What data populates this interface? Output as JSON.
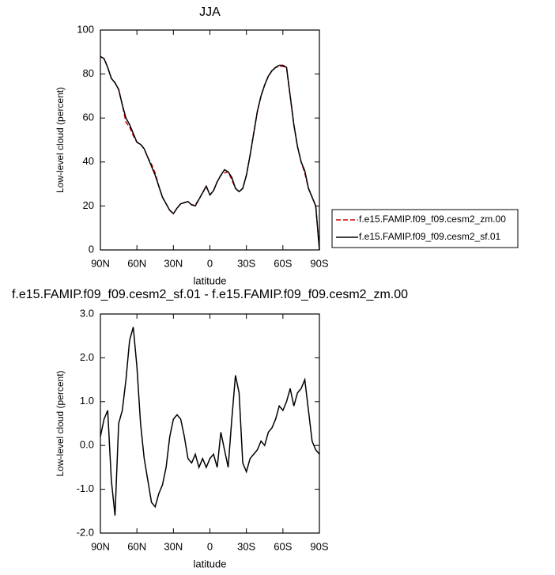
{
  "chart_data": [
    {
      "type": "line",
      "title": "JJA",
      "xlabel": "latitude",
      "ylabel": "Low-level cloud (percent)",
      "x": [
        90,
        87,
        84,
        81,
        78,
        75,
        72,
        69,
        66,
        63,
        60,
        57,
        54,
        51,
        48,
        45,
        42,
        39,
        36,
        33,
        30,
        27,
        24,
        21,
        18,
        15,
        12,
        9,
        6,
        3,
        0,
        -3,
        -6,
        -9,
        -12,
        -15,
        -18,
        -21,
        -24,
        -27,
        -30,
        -33,
        -36,
        -39,
        -42,
        -45,
        -48,
        -51,
        -54,
        -57,
        -60,
        -63,
        -66,
        -69,
        -72,
        -75,
        -78,
        -81,
        -84,
        -87,
        -90
      ],
      "series": [
        {
          "name": "f.e15.FAMIP.f09_f09.cesm2_zm.00",
          "color": "#cc0000",
          "line_style": "dashed",
          "values": [
            88,
            87,
            83,
            78,
            76,
            73,
            66,
            58,
            56,
            52,
            49,
            48,
            46,
            42,
            39,
            35,
            29,
            24,
            21,
            18,
            16.5,
            19,
            21,
            21.5,
            22,
            20.5,
            20.5,
            23,
            26,
            29,
            25,
            27,
            31,
            34,
            35,
            35.5,
            32,
            28,
            26.5,
            28,
            34,
            43,
            53,
            63,
            70,
            75,
            79,
            81.5,
            83,
            83.5,
            83.5,
            83,
            70,
            57,
            47,
            40,
            35,
            28,
            24,
            20,
            0
          ]
        },
        {
          "name": "f.e15.FAMIP.f09_f09.cesm2_sf.01",
          "color": "#000000",
          "line_style": "solid",
          "values": [
            88,
            87,
            83,
            78,
            76,
            73,
            66,
            60,
            57,
            53,
            49,
            48,
            46,
            42,
            38,
            34,
            29,
            24,
            21,
            18,
            16.5,
            19,
            21,
            21.5,
            22,
            20.5,
            20,
            23,
            26,
            29,
            25,
            27,
            31,
            34,
            36.5,
            35.5,
            33,
            28,
            26.5,
            28,
            34,
            43,
            53,
            63,
            70,
            75,
            79,
            81.5,
            83,
            84,
            84,
            83,
            70,
            57,
            47,
            40,
            36,
            28,
            24,
            20,
            0
          ]
        }
      ],
      "xlim": [
        90,
        -90
      ],
      "xticks": [
        {
          "value": 90,
          "label": "90N"
        },
        {
          "value": 60,
          "label": "60N"
        },
        {
          "value": 30,
          "label": "30N"
        },
        0,
        {
          "value": -30,
          "label": "30S"
        },
        {
          "value": -60,
          "label": "60S"
        },
        {
          "value": -90,
          "label": "90S"
        }
      ],
      "ylim": [
        0,
        100
      ],
      "yticks": [
        0,
        20,
        40,
        60,
        80,
        100
      ],
      "legend_position": "right"
    },
    {
      "type": "line",
      "title": "f.e15.FAMIP.f09_f09.cesm2_sf.01 - f.e15.FAMIP.f09_f09.cesm2_zm.00",
      "xlabel": "latitude",
      "ylabel": "Low-level cloud (percent)",
      "x": [
        90,
        87,
        84,
        81,
        78,
        75,
        72,
        69,
        66,
        63,
        60,
        57,
        54,
        51,
        48,
        45,
        42,
        39,
        36,
        33,
        30,
        27,
        24,
        21,
        18,
        15,
        12,
        9,
        6,
        3,
        0,
        -3,
        -6,
        -9,
        -12,
        -15,
        -18,
        -21,
        -24,
        -27,
        -30,
        -33,
        -36,
        -39,
        -42,
        -45,
        -48,
        -51,
        -54,
        -57,
        -60,
        -63,
        -66,
        -69,
        -72,
        -75,
        -78,
        -81,
        -84,
        -87,
        -90
      ],
      "series": [
        {
          "color": "#000000",
          "line_style": "solid",
          "values": [
            0.2,
            0.6,
            0.8,
            -0.8,
            -1.6,
            0.5,
            0.8,
            1.5,
            2.4,
            2.7,
            1.8,
            0.5,
            -0.3,
            -0.8,
            -1.3,
            -1.4,
            -1.1,
            -0.9,
            -0.5,
            0.2,
            0.6,
            0.7,
            0.6,
            0.2,
            -0.3,
            -0.4,
            -0.2,
            -0.5,
            -0.3,
            -0.5,
            -0.3,
            -0.2,
            -0.5,
            0.3,
            -0.1,
            -0.5,
            0.6,
            1.6,
            1.2,
            -0.4,
            -0.6,
            -0.3,
            -0.2,
            -0.1,
            0.1,
            0.0,
            0.3,
            0.4,
            0.6,
            0.9,
            0.8,
            1.0,
            1.3,
            0.9,
            1.2,
            1.3,
            1.5,
            0.8,
            0.1,
            -0.1,
            -0.2
          ]
        }
      ],
      "xlim": [
        90,
        -90
      ],
      "xticks": [
        {
          "value": 90,
          "label": "90N"
        },
        {
          "value": 60,
          "label": "60N"
        },
        {
          "value": 30,
          "label": "30N"
        },
        0,
        {
          "value": -30,
          "label": "30S"
        },
        {
          "value": -60,
          "label": "60S"
        },
        {
          "value": -90,
          "label": "90S"
        }
      ],
      "ylim": [
        -2,
        3
      ],
      "yticks": [
        {
          "value": -2,
          "label": "-2.0"
        },
        {
          "value": -1,
          "label": "-1.0"
        },
        {
          "value": 0,
          "label": "0.0"
        },
        {
          "value": 1,
          "label": "1.0"
        },
        {
          "value": 2,
          "label": "2.0"
        },
        {
          "value": 3,
          "label": "3.0"
        }
      ]
    }
  ]
}
